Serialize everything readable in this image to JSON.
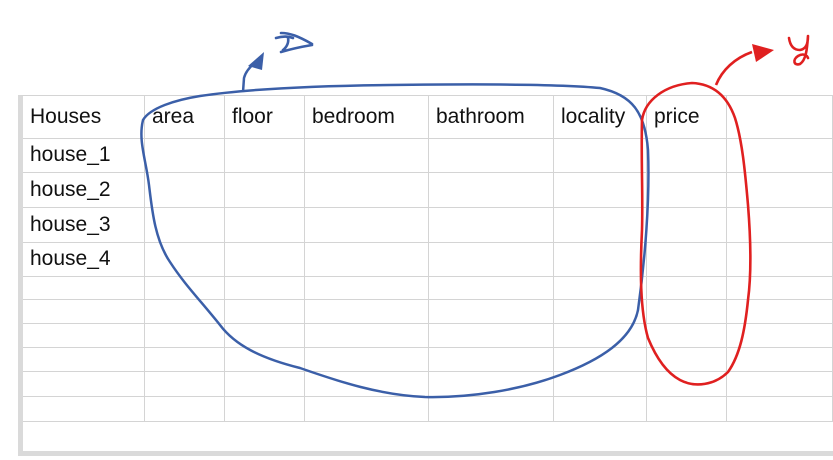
{
  "sheet": {
    "headers": [
      "Houses",
      "area",
      "floor",
      "bedroom",
      "bathroom",
      "locality",
      "price",
      ""
    ],
    "rows": [
      [
        "house_1",
        "",
        "",
        "",
        "",
        "",
        "",
        ""
      ],
      [
        "house_2",
        "",
        "",
        "",
        "",
        "",
        "",
        ""
      ],
      [
        "house_3",
        "",
        "",
        "",
        "",
        "",
        "",
        ""
      ],
      [
        "house_4",
        "",
        "",
        "",
        "",
        "",
        "",
        ""
      ],
      [
        "",
        "",
        "",
        "",
        "",
        "",
        "",
        ""
      ],
      [
        "",
        "",
        "",
        "",
        "",
        "",
        "",
        ""
      ],
      [
        "",
        "",
        "",
        "",
        "",
        "",
        "",
        ""
      ],
      [
        "",
        "",
        "",
        "",
        "",
        "",
        "",
        ""
      ],
      [
        "",
        "",
        "",
        "",
        "",
        "",
        "",
        ""
      ],
      [
        "",
        "",
        "",
        "",
        "",
        "",
        "",
        ""
      ]
    ]
  },
  "annotations": {
    "x_label": "x",
    "y_label": "y",
    "x_color": "#3b5fa8",
    "y_color": "#e02020"
  }
}
